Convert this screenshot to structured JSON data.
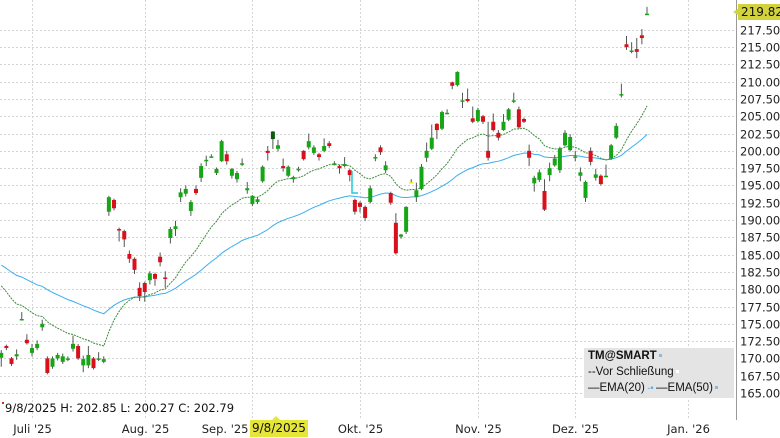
{
  "chart_data": {
    "type": "candlestick",
    "symbol": "TM@SMART",
    "ylim": [
      161.1,
      221.8
    ],
    "y_ticks": [
      "165.00",
      "167.50",
      "170.00",
      "172.50",
      "175.00",
      "177.50",
      "180.00",
      "182.50",
      "185.00",
      "187.50",
      "190.00",
      "192.50",
      "195.00",
      "197.50",
      "200.00",
      "202.50",
      "205.00",
      "207.50",
      "210.00",
      "212.50",
      "215.00",
      "217.50"
    ],
    "x_ticks": [
      {
        "date": "2025-07-01",
        "label": "Juli '25"
      },
      {
        "date": "2025-08-01",
        "label": "Aug. '25"
      },
      {
        "date": "2025-09-02",
        "label": "Sep. '25"
      },
      {
        "date": "2025-10-01",
        "label": "Okt. '25"
      },
      {
        "date": "2025-11-03",
        "label": "Nov. '25"
      },
      {
        "date": "2025-12-01",
        "label": "Dez. '25"
      },
      {
        "date": "2026-01-02",
        "label": "Jan. '26"
      }
    ],
    "last_price": "219.82",
    "crosshair_date": "9/8/2025",
    "hover_info": "9/8/2025 H: 202.85 L: 200.27 C: 202.79",
    "legend": {
      "title": "TM@SMART",
      "items": [
        "--Vor Schließung",
        "—EMA(20)",
        "—EMA(50)"
      ]
    },
    "series_colors": {
      "up": "#15a615",
      "down": "#d8101c",
      "unchanged": "#e8e820",
      "wick": "#555555",
      "ema20": "#3d8a3d",
      "ema50": "#3aaef0",
      "pre_close": "#22c8d8"
    },
    "grid": true,
    "candles_columns": [
      "date",
      "open",
      "high",
      "low",
      "close"
    ],
    "candles": [
      [
        "2025-06-23",
        170.1,
        171.2,
        168.8,
        170.8
      ],
      [
        "2025-06-24",
        171.8,
        172.0,
        171.2,
        171.5
      ],
      [
        "2025-06-25",
        170.0,
        170.2,
        168.9,
        169.2
      ],
      [
        "2025-06-26",
        170.3,
        171.3,
        169.8,
        170.6
      ],
      [
        "2025-06-27",
        175.7,
        176.7,
        175.6,
        175.7
      ],
      [
        "2025-06-30",
        172.7,
        173.5,
        172.0,
        172.2
      ],
      [
        "2025-07-01",
        170.8,
        172.1,
        170.3,
        171.5
      ],
      [
        "2025-07-02",
        171.5,
        172.6,
        171.2,
        172.1
      ],
      [
        "2025-07-03",
        174.5,
        175.6,
        174.0,
        175.0
      ],
      [
        "2025-07-07",
        170.0,
        170.3,
        167.7,
        167.9
      ],
      [
        "2025-07-08",
        168.8,
        170.3,
        168.5,
        170.0
      ],
      [
        "2025-07-09",
        170.0,
        170.8,
        169.7,
        170.5
      ],
      [
        "2025-07-10",
        169.5,
        170.7,
        169.2,
        170.3
      ],
      [
        "2025-07-11",
        170.0,
        170.3,
        169.6,
        170.0
      ],
      [
        "2025-07-14",
        171.4,
        173.3,
        171.0,
        172.1
      ],
      [
        "2025-07-15",
        171.8,
        172.1,
        169.8,
        170.0
      ],
      [
        "2025-07-16",
        169.0,
        170.4,
        168.0,
        169.9
      ],
      [
        "2025-07-17",
        169.0,
        171.8,
        168.6,
        170.5
      ],
      [
        "2025-07-18",
        170.0,
        170.2,
        168.4,
        168.6
      ],
      [
        "2025-07-21",
        170.0,
        170.9,
        169.6,
        170.0
      ],
      [
        "2025-07-22",
        169.5,
        170.3,
        169.3,
        169.9
      ],
      [
        "2025-07-23",
        191.2,
        193.5,
        190.6,
        193.3
      ],
      [
        "2025-07-24",
        192.9,
        193.1,
        191.4,
        191.7
      ],
      [
        "2025-07-25",
        188.7,
        188.9,
        186.9,
        188.6
      ],
      [
        "2025-07-28",
        188.4,
        188.6,
        186.1,
        187.2
      ],
      [
        "2025-07-29",
        185.1,
        185.6,
        183.8,
        184.4
      ],
      [
        "2025-07-30",
        184.4,
        184.6,
        182.2,
        182.8
      ],
      [
        "2025-07-31",
        180.2,
        181.0,
        178.3,
        179.0
      ],
      [
        "2025-08-01",
        180.9,
        181.1,
        178.2,
        179.6
      ],
      [
        "2025-08-04",
        181.3,
        182.6,
        180.7,
        182.3
      ],
      [
        "2025-08-05",
        182.2,
        182.4,
        180.5,
        181.5
      ],
      [
        "2025-08-06",
        184.7,
        185.3,
        183.3,
        183.9
      ],
      [
        "2025-08-07",
        181.7,
        182.6,
        180.2,
        181.6
      ],
      [
        "2025-08-08",
        187.4,
        189.0,
        186.6,
        188.7
      ],
      [
        "2025-08-11",
        188.7,
        189.9,
        187.7,
        189.1
      ],
      [
        "2025-08-12",
        193.3,
        194.6,
        192.6,
        194.0
      ],
      [
        "2025-08-13",
        193.8,
        195.0,
        193.4,
        194.5
      ],
      [
        "2025-08-14",
        191.3,
        192.9,
        190.6,
        192.6
      ],
      [
        "2025-08-15",
        194.5,
        195.0,
        193.6,
        193.9
      ],
      [
        "2025-08-18",
        196.1,
        198.2,
        195.5,
        197.8
      ],
      [
        "2025-08-19",
        198.6,
        199.3,
        197.8,
        198.7
      ],
      [
        "2025-08-20",
        199.2,
        199.5,
        199.0,
        199.2
      ],
      [
        "2025-08-21",
        196.8,
        197.6,
        196.5,
        197.4
      ],
      [
        "2025-08-22",
        198.5,
        201.6,
        198.4,
        201.4
      ],
      [
        "2025-08-25",
        199.5,
        200.0,
        198.0,
        198.5
      ],
      [
        "2025-08-26",
        196.4,
        197.5,
        196.0,
        197.4
      ],
      [
        "2025-08-27",
        195.9,
        197.1,
        195.4,
        196.8
      ],
      [
        "2025-08-28",
        198.2,
        198.9,
        197.8,
        198.2
      ],
      [
        "2025-08-29",
        194.3,
        195.5,
        193.8,
        194.6
      ],
      [
        "2025-09-02",
        192.3,
        193.6,
        192.0,
        193.5
      ],
      [
        "2025-09-03",
        192.6,
        193.3,
        192.3,
        193.0
      ],
      [
        "2025-09-04",
        195.6,
        197.9,
        195.4,
        197.7
      ],
      [
        "2025-09-05",
        200.0,
        200.7,
        198.6,
        199.7
      ],
      [
        "2025-09-08",
        201.7,
        202.85,
        200.27,
        202.79
      ],
      [
        "2025-09-09",
        200.3,
        201.6,
        199.9,
        200.8
      ],
      [
        "2025-09-10",
        197.8,
        198.9,
        197.0,
        197.5
      ],
      [
        "2025-09-11",
        196.4,
        197.9,
        196.2,
        197.7
      ],
      [
        "2025-09-12",
        195.9,
        196.4,
        195.4,
        196.2
      ],
      [
        "2025-09-15",
        197.4,
        197.7,
        197.0,
        197.4
      ],
      [
        "2025-09-16",
        200.0,
        200.1,
        198.6,
        198.8
      ],
      [
        "2025-09-17",
        200.5,
        202.5,
        200.2,
        201.4
      ],
      [
        "2025-09-18",
        199.7,
        200.8,
        199.4,
        200.5
      ],
      [
        "2025-09-19",
        199.5,
        199.7,
        198.6,
        199.1
      ],
      [
        "2025-09-22",
        200.0,
        201.8,
        199.8,
        200.7
      ],
      [
        "2025-09-23",
        201.1,
        201.4,
        200.4,
        200.7
      ],
      [
        "2025-09-24",
        198.2,
        198.5,
        197.9,
        198.2
      ],
      [
        "2025-09-25",
        197.8,
        198.0,
        196.7,
        197.5
      ],
      [
        "2025-09-26",
        197.8,
        199.1,
        197.6,
        198.1
      ],
      [
        "2025-09-29",
        197.2,
        197.4,
        195.6,
        196.5
      ],
      [
        "2025-09-30",
        192.9,
        193.1,
        190.8,
        191.2
      ],
      [
        "2025-10-01",
        192.5,
        192.7,
        191.1,
        191.9
      ],
      [
        "2025-10-02",
        191.9,
        192.1,
        189.9,
        190.3
      ],
      [
        "2025-10-03",
        192.6,
        195.0,
        192.4,
        194.6
      ],
      [
        "2025-10-06",
        198.9,
        199.5,
        198.5,
        199.1
      ],
      [
        "2025-10-07",
        200.5,
        200.8,
        199.4,
        199.8
      ],
      [
        "2025-10-08",
        197.2,
        198.5,
        196.8,
        197.9
      ],
      [
        "2025-10-09",
        193.9,
        194.1,
        192.2,
        192.5
      ],
      [
        "2025-10-10",
        189.6,
        191.0,
        185.0,
        185.2
      ],
      [
        "2025-10-13",
        187.6,
        188.0,
        187.3,
        187.9
      ],
      [
        "2025-10-14",
        188.3,
        192.0,
        188.0,
        191.9
      ],
      [
        "2025-10-15",
        195.5,
        195.9,
        195.3,
        195.5
      ],
      [
        "2025-10-16",
        193.3,
        195.4,
        192.6,
        194.3
      ],
      [
        "2025-10-17",
        194.5,
        198.1,
        194.3,
        197.7
      ],
      [
        "2025-10-20",
        199.0,
        201.2,
        198.4,
        200.0
      ],
      [
        "2025-10-21",
        200.3,
        203.8,
        200.1,
        201.9
      ],
      [
        "2025-10-22",
        203.9,
        204.0,
        201.7,
        203.0
      ],
      [
        "2025-10-23",
        203.2,
        205.8,
        203.0,
        205.6
      ],
      [
        "2025-10-24",
        205.5,
        206.0,
        205.3,
        205.5
      ],
      [
        "2025-10-27",
        209.9,
        210.0,
        208.9,
        209.4
      ],
      [
        "2025-10-28",
        209.5,
        211.5,
        209.3,
        211.4
      ],
      [
        "2025-10-29",
        207.3,
        208.4,
        206.2,
        207.3
      ],
      [
        "2025-10-30",
        207.5,
        209.0,
        207.0,
        207.2
      ],
      [
        "2025-10-31",
        204.7,
        206.4,
        204.0,
        204.2
      ],
      [
        "2025-11-03",
        204.3,
        206.2,
        204.1,
        205.9
      ],
      [
        "2025-11-04",
        205.0,
        205.2,
        203.9,
        204.2
      ],
      [
        "2025-11-05",
        200.0,
        204.2,
        198.6,
        199.0
      ],
      [
        "2025-11-06",
        204.2,
        205.4,
        202.8,
        203.0
      ],
      [
        "2025-11-07",
        202.6,
        203.0,
        201.5,
        201.9
      ],
      [
        "2025-11-10",
        203.0,
        205.3,
        202.9,
        204.2
      ],
      [
        "2025-11-11",
        204.5,
        206.2,
        204.3,
        206.0
      ],
      [
        "2025-11-12",
        207.3,
        208.4,
        206.9,
        207.3
      ],
      [
        "2025-11-13",
        206.0,
        206.4,
        203.2,
        203.4
      ],
      [
        "2025-11-14",
        204.6,
        204.8,
        204.0,
        204.2
      ],
      [
        "2025-11-17",
        200.0,
        200.9,
        197.8,
        199.0
      ],
      [
        "2025-11-18",
        195.3,
        196.4,
        194.1,
        196.1
      ],
      [
        "2025-11-19",
        195.8,
        197.3,
        195.5,
        196.9
      ],
      [
        "2025-11-20",
        194.2,
        195.9,
        191.3,
        191.5
      ],
      [
        "2025-11-21",
        196.5,
        198.3,
        195.6,
        197.5
      ],
      [
        "2025-11-24",
        197.9,
        199.4,
        197.7,
        198.9
      ],
      [
        "2025-11-25",
        197.2,
        200.6,
        196.8,
        200.3
      ],
      [
        "2025-11-26",
        200.8,
        203.0,
        200.6,
        202.6
      ],
      [
        "2025-11-28",
        200.1,
        202.4,
        199.9,
        202.0
      ],
      [
        "2025-12-01",
        199.2,
        200.0,
        198.5,
        199.2
      ],
      [
        "2025-12-02",
        196.4,
        197.6,
        195.6,
        196.9
      ],
      [
        "2025-12-03",
        193.2,
        195.7,
        192.6,
        195.5
      ],
      [
        "2025-12-04",
        200.0,
        200.5,
        197.9,
        198.4
      ],
      [
        "2025-12-05",
        196.1,
        197.4,
        195.7,
        196.6
      ],
      [
        "2025-12-08",
        196.4,
        196.6,
        195.0,
        195.2
      ],
      [
        "2025-12-09",
        196.4,
        198.0,
        196.2,
        196.4
      ],
      [
        "2025-12-10",
        198.9,
        201.0,
        198.7,
        200.8
      ],
      [
        "2025-12-11",
        201.9,
        204.0,
        201.7,
        203.6
      ],
      [
        "2025-12-12",
        208.2,
        209.7,
        207.7,
        208.2
      ],
      [
        "2025-12-15",
        215.4,
        216.6,
        214.6,
        215.0
      ],
      [
        "2025-12-16",
        214.3,
        215.7,
        214.1,
        214.5
      ],
      [
        "2025-12-17",
        214.7,
        216.3,
        213.4,
        214.3
      ],
      [
        "2025-12-18",
        216.7,
        217.6,
        215.4,
        216.3
      ],
      [
        "2025-12-19",
        219.8,
        220.8,
        219.7,
        219.82
      ]
    ]
  }
}
